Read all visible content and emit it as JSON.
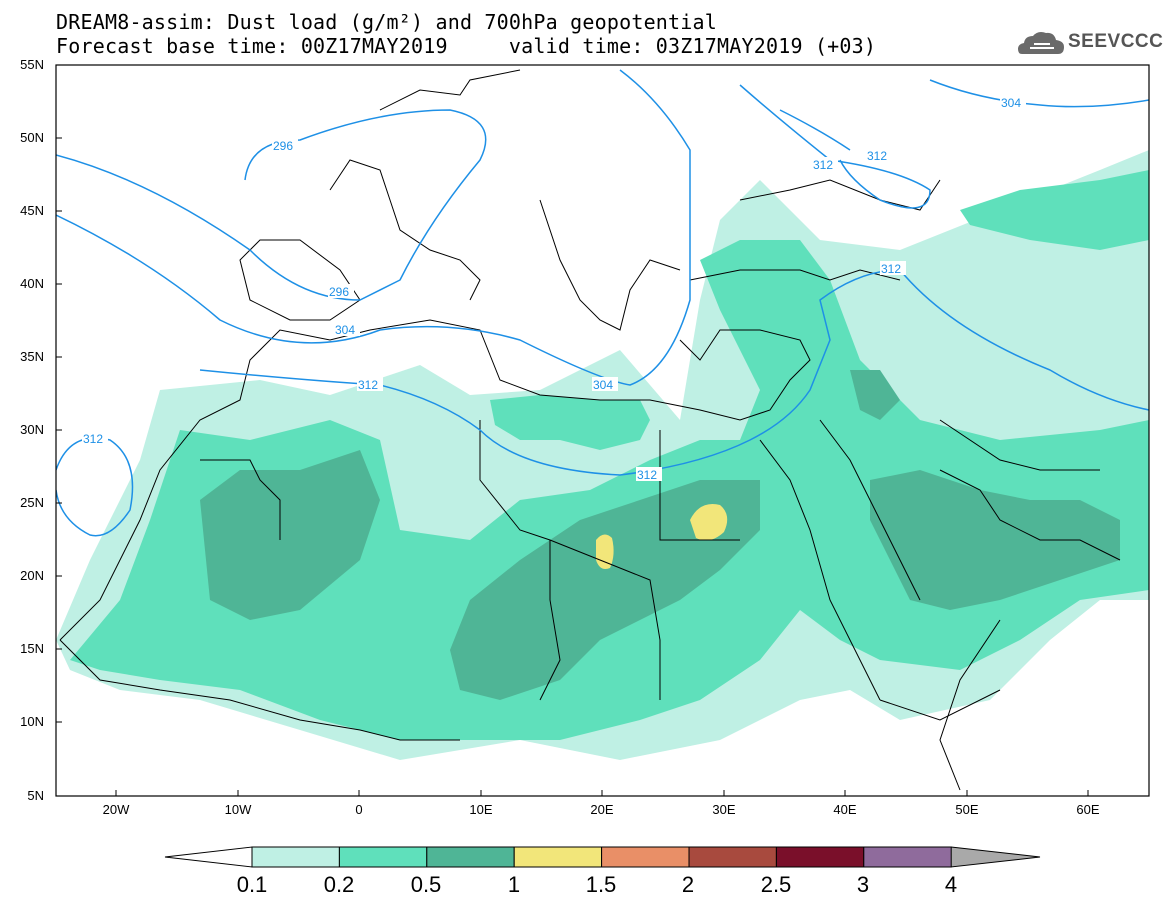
{
  "header": {
    "title_line1": "DREAM8-assim: Dust load (g/m²) and 700hPa geopotential",
    "title_line2": "Forecast base time: 00Z17MAY2019     valid time: 03Z17MAY2019 (+03)"
  },
  "logo": {
    "text": "SEEVCCC",
    "icon": "cloud-icon"
  },
  "map": {
    "lat_labels": [
      "55N",
      "50N",
      "45N",
      "40N",
      "35N",
      "30N",
      "25N",
      "20N",
      "15N",
      "10N",
      "5N"
    ],
    "lon_labels": [
      "20W",
      "10W",
      "0",
      "10E",
      "20E",
      "30E",
      "40E",
      "50E",
      "60E"
    ],
    "contour_labels": [
      "296",
      "296",
      "304",
      "304",
      "304",
      "312",
      "312",
      "312",
      "312",
      "312",
      "312"
    ],
    "colors": {
      "dust_0_1": "#bff0e4",
      "dust_0_2": "#5fe0bb",
      "dust_0_5": "#4fb596",
      "dust_1": "#f2e67a",
      "contour": "#1e90e6"
    }
  },
  "colorbar": {
    "labels": [
      "0.1",
      "0.2",
      "0.5",
      "1",
      "1.5",
      "2",
      "2.5",
      "3",
      "4"
    ],
    "colors": [
      "#bff0e4",
      "#5fe0bb",
      "#4fb596",
      "#f2e67a",
      "#e98f67",
      "#a84a3e",
      "#7a0f2a",
      "#8f6b9c"
    ],
    "under_color": "#ffffff",
    "over_color": "#a9a9a9"
  }
}
